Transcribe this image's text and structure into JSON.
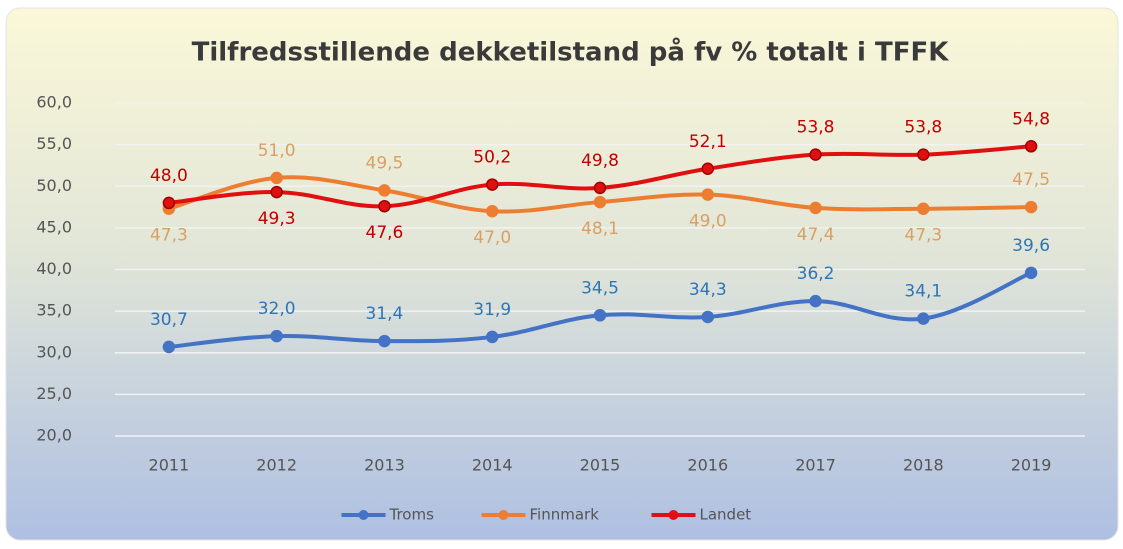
{
  "chart_data": {
    "type": "line",
    "title": "Tilfredsstillende dekketilstand på fv % totalt i TFFK",
    "categories": [
      "2011",
      "2012",
      "2013",
      "2014",
      "2015",
      "2016",
      "2017",
      "2018",
      "2019"
    ],
    "series": [
      {
        "name": "Troms",
        "color": "#4472c4",
        "label_color": "#2e75b6",
        "values": [
          30.7,
          32.0,
          31.4,
          31.9,
          34.5,
          34.3,
          36.2,
          34.1,
          39.6
        ],
        "value_labels": [
          "30,7",
          "32,0",
          "31,4",
          "31,9",
          "34,5",
          "34,3",
          "36,2",
          "34,1",
          "39,6"
        ]
      },
      {
        "name": "Finnmark",
        "color": "#ed7d31",
        "label_color": "#d9a066",
        "values": [
          47.3,
          51.0,
          49.5,
          47.0,
          48.1,
          49.0,
          47.4,
          47.3,
          47.5
        ],
        "value_labels": [
          "47,3",
          "51,0",
          "49,5",
          "47,0",
          "48,1",
          "49,0",
          "47,4",
          "47,3",
          "47,5"
        ]
      },
      {
        "name": "Landet",
        "color": "#e01010",
        "label_color": "#c00000",
        "values": [
          48.0,
          49.3,
          47.6,
          50.2,
          49.8,
          52.1,
          53.8,
          53.8,
          54.8
        ],
        "value_labels": [
          "48,0",
          "49,3",
          "47,6",
          "50,2",
          "49,8",
          "52,1",
          "53,8",
          "53,8",
          "54,8"
        ]
      }
    ],
    "ylim": [
      20,
      60
    ],
    "yticks": [
      {
        "value": 20,
        "label": "20,0"
      },
      {
        "value": 25,
        "label": "25,0"
      },
      {
        "value": 30,
        "label": "30,0"
      },
      {
        "value": 35,
        "label": "35,0"
      },
      {
        "value": 40,
        "label": "40,0"
      },
      {
        "value": 45,
        "label": "45,0"
      },
      {
        "value": 50,
        "label": "50,0"
      },
      {
        "value": 55,
        "label": "55,0"
      },
      {
        "value": 60,
        "label": "60,0"
      }
    ],
    "grid": true,
    "legend": "bottom"
  }
}
